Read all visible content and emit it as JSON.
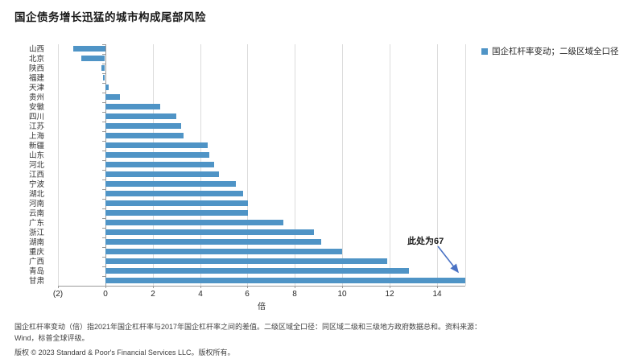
{
  "title": "国企债务增长迅猛的城市构成尾部风险",
  "legend": {
    "label": "国企杠杆率变动；二级区域全口径",
    "marker_color": "#4f94c6"
  },
  "chart_data": {
    "type": "bar",
    "orientation": "horizontal",
    "title": "国企债务增长迅猛的城市构成尾部风险",
    "categories": [
      "山西",
      "北京",
      "陕西",
      "福建",
      "天津",
      "贵州",
      "安徽",
      "四川",
      "江苏",
      "上海",
      "新疆",
      "山东",
      "河北",
      "江西",
      "宁波",
      "湖北",
      "河南",
      "云南",
      "广东",
      "浙江",
      "湖南",
      "重庆",
      "广西",
      "青岛",
      "甘肃"
    ],
    "values": [
      -1.35,
      -1.0,
      -0.15,
      -0.08,
      0.12,
      0.6,
      2.3,
      3.0,
      3.2,
      3.3,
      4.3,
      4.4,
      4.6,
      4.8,
      5.5,
      5.8,
      6.0,
      6.0,
      7.5,
      8.8,
      9.1,
      10.0,
      11.9,
      12.8,
      15.2
    ],
    "xlabel": "倍",
    "x_ticks": [
      "(2)",
      "0",
      "2",
      "4",
      "6",
      "8",
      "10",
      "12",
      "14"
    ],
    "x_tick_values": [
      -2,
      0,
      2,
      4,
      6,
      8,
      10,
      12,
      14
    ],
    "gridline_values": [
      2,
      4,
      6,
      8,
      10,
      12,
      14
    ],
    "xlim": [
      -2,
      15.2
    ],
    "bar_color": "#4f94c6",
    "grid": true,
    "legend_position": "top-right",
    "annotation": {
      "text": "此处为67",
      "target_category": "甘肃",
      "actual_value": 67,
      "arrow_color": "#4a72c4"
    }
  },
  "footnote": {
    "line1": "国企杠杆率变动（倍）指2021年国企杠杆率与2017年国企杠杆率之间的差值。二级区域全口径：同区域二级和三级地方政府数据总和。资料来源：",
    "line2": "Wind，标普全球评级。"
  },
  "copyright": "版权 © 2023 Standard & Poor's Financial Services LLC。版权所有。"
}
